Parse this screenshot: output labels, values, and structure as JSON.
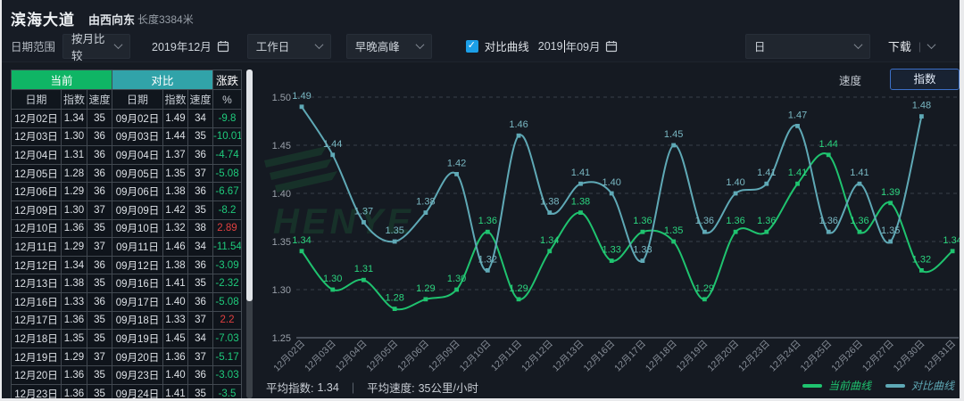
{
  "header": {
    "title": "滨海大道",
    "direction": "由西向东",
    "length": "长度3384米"
  },
  "filter_bar": {
    "date_range_label": "日期范围",
    "compare_mode": "按月比较",
    "current_month": "2019年12月",
    "day_type": "工作日",
    "peak_type": "早晚高峰",
    "compare_checkbox_label": "对比曲线",
    "compare_month_prefix": "2019",
    "compare_month_suffix": "年09月",
    "granularity": "日",
    "download_label": "下载"
  },
  "table": {
    "group_headers": [
      {
        "label": "当前",
        "color": "#0fb565",
        "span": 3
      },
      {
        "label": "对比",
        "color": "#31a3a9",
        "span": 3
      },
      {
        "label": "涨跌",
        "color": "#151b22",
        "span": 1
      }
    ],
    "columns": [
      "日期",
      "指数",
      "速度",
      "日期",
      "指数",
      "速度",
      "%"
    ],
    "rows": [
      [
        "12月02日",
        "1.34",
        "35",
        "09月02日",
        "1.49",
        "34",
        "-9.8"
      ],
      [
        "12月03日",
        "1.30",
        "36",
        "09月03日",
        "1.44",
        "35",
        "-10.01"
      ],
      [
        "12月04日",
        "1.31",
        "36",
        "09月04日",
        "1.37",
        "36",
        "-4.74"
      ],
      [
        "12月05日",
        "1.28",
        "36",
        "09月05日",
        "1.35",
        "37",
        "-5.08"
      ],
      [
        "12月06日",
        "1.29",
        "36",
        "09月06日",
        "1.38",
        "36",
        "-6.67"
      ],
      [
        "12月09日",
        "1.30",
        "37",
        "09月09日",
        "1.42",
        "35",
        "-8.2"
      ],
      [
        "12月10日",
        "1.36",
        "35",
        "09月10日",
        "1.32",
        "38",
        "2.89"
      ],
      [
        "12月11日",
        "1.29",
        "37",
        "09月11日",
        "1.46",
        "34",
        "-11.54"
      ],
      [
        "12月12日",
        "1.34",
        "36",
        "09月12日",
        "1.38",
        "36",
        "-3.09"
      ],
      [
        "12月13日",
        "1.38",
        "35",
        "09月16日",
        "1.41",
        "35",
        "-2.32"
      ],
      [
        "12月16日",
        "1.33",
        "36",
        "09月17日",
        "1.40",
        "36",
        "-5.08"
      ],
      [
        "12月17日",
        "1.36",
        "35",
        "09月18日",
        "1.33",
        "37",
        "2.2"
      ],
      [
        "12月18日",
        "1.35",
        "35",
        "09月19日",
        "1.45",
        "34",
        "-7.03"
      ],
      [
        "12月19日",
        "1.29",
        "37",
        "09月20日",
        "1.36",
        "37",
        "-5.17"
      ],
      [
        "12月20日",
        "1.36",
        "35",
        "09月23日",
        "1.40",
        "36",
        "-3.03"
      ],
      [
        "12月23日",
        "1.36",
        "35",
        "09月24日",
        "1.41",
        "35",
        "-3.5"
      ]
    ]
  },
  "toggle": {
    "speed_label": "速度",
    "index_label": "指数"
  },
  "chart_data": {
    "type": "line",
    "categories": [
      "12月02日",
      "12月03日",
      "12月04日",
      "12月05日",
      "12月06日",
      "12月09日",
      "12月10日",
      "12月11日",
      "12月12日",
      "12月13日",
      "12月16日",
      "12月17日",
      "12月18日",
      "12月19日",
      "12月20日",
      "12月23日",
      "12月24日",
      "12月25日",
      "12月26日",
      "12月27日",
      "12月30日",
      "12月31日"
    ],
    "series": [
      {
        "name": "当前曲线",
        "color": "#1fc36f",
        "label_color": "#2bd47e",
        "values": [
          1.34,
          1.3,
          1.31,
          1.28,
          1.29,
          1.3,
          1.36,
          1.29,
          1.34,
          1.38,
          1.33,
          1.36,
          1.35,
          1.29,
          1.36,
          1.36,
          1.41,
          1.44,
          1.36,
          1.39,
          1.32,
          1.34
        ]
      },
      {
        "name": "对比曲线",
        "color": "#5fa9b6",
        "label_color": "#79b7c2",
        "values": [
          1.49,
          1.44,
          1.37,
          1.35,
          1.38,
          1.42,
          1.32,
          1.46,
          1.38,
          1.41,
          1.4,
          1.33,
          1.45,
          1.36,
          1.4,
          1.41,
          1.47,
          1.36,
          1.41,
          1.35,
          1.48
        ]
      }
    ],
    "ylim": [
      1.25,
      1.5
    ],
    "yticks": [
      "1.25",
      "1.30",
      "1.35",
      "1.40",
      "1.45",
      "1.50"
    ],
    "grid": true,
    "legend_position": "bottom-right",
    "title": "",
    "xlabel": "",
    "ylabel": ""
  },
  "stats": {
    "avg_index_label": "平均指数:",
    "avg_index": "1.34",
    "avg_speed_label": "平均速度:",
    "avg_speed": "35公里/小时"
  },
  "legend": [
    {
      "label": "当前曲线",
      "color": "#1fc36f"
    },
    {
      "label": "对比曲线",
      "color": "#5fa9b6"
    }
  ],
  "watermark": {
    "text": "HENYE"
  }
}
